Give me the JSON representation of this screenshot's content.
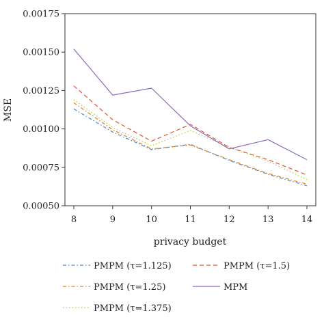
{
  "chart_data": {
    "type": "line",
    "title": "",
    "xlabel": "privacy budget",
    "ylabel": "MSE",
    "x": [
      8,
      9,
      10,
      11,
      12,
      13,
      14
    ],
    "xlim": [
      8,
      14
    ],
    "ylim": [
      0.0005,
      0.00175
    ],
    "x_tick_labels": [
      "8",
      "9",
      "10",
      "11",
      "12",
      "13",
      "14"
    ],
    "y_ticks": [
      0.0005,
      0.00075,
      0.001,
      0.00125,
      0.0015,
      0.00175
    ],
    "y_tick_labels": [
      "0.00050",
      "0.00075",
      "0.00100",
      "0.00125",
      "0.00150",
      "0.00175"
    ],
    "grid": false,
    "legend_position": "bottom",
    "series": [
      {
        "name": "PMPM (τ=1.125)",
        "color": "#4a86c5",
        "dash": "dashdot",
        "values": [
          0.00113,
          0.00098,
          0.000865,
          0.0009,
          0.000795,
          0.000705,
          0.00063
        ]
      },
      {
        "name": "PMPM (τ=1.25)",
        "color": "#e0801c",
        "dash": "dashdot",
        "values": [
          0.00117,
          0.000995,
          0.00087,
          0.000895,
          0.0008,
          0.00071,
          0.00064
        ]
      },
      {
        "name": "PMPM (τ=1.375)",
        "color": "#b8c43a",
        "dash": "dotted",
        "values": [
          0.00119,
          0.00101,
          0.00089,
          0.00099,
          0.00088,
          0.00079,
          0.00067
        ]
      },
      {
        "name": "PMPM (τ=1.5)",
        "color": "#e3552f",
        "dash": "dashed",
        "values": [
          0.00128,
          0.00106,
          0.00092,
          0.00103,
          0.00088,
          0.0008,
          0.0007
        ]
      },
      {
        "name": "MPM",
        "color": "#8b6bb8",
        "dash": "solid",
        "values": [
          0.00152,
          0.00122,
          0.001265,
          0.00102,
          0.00087,
          0.00093,
          0.0008
        ]
      }
    ]
  }
}
